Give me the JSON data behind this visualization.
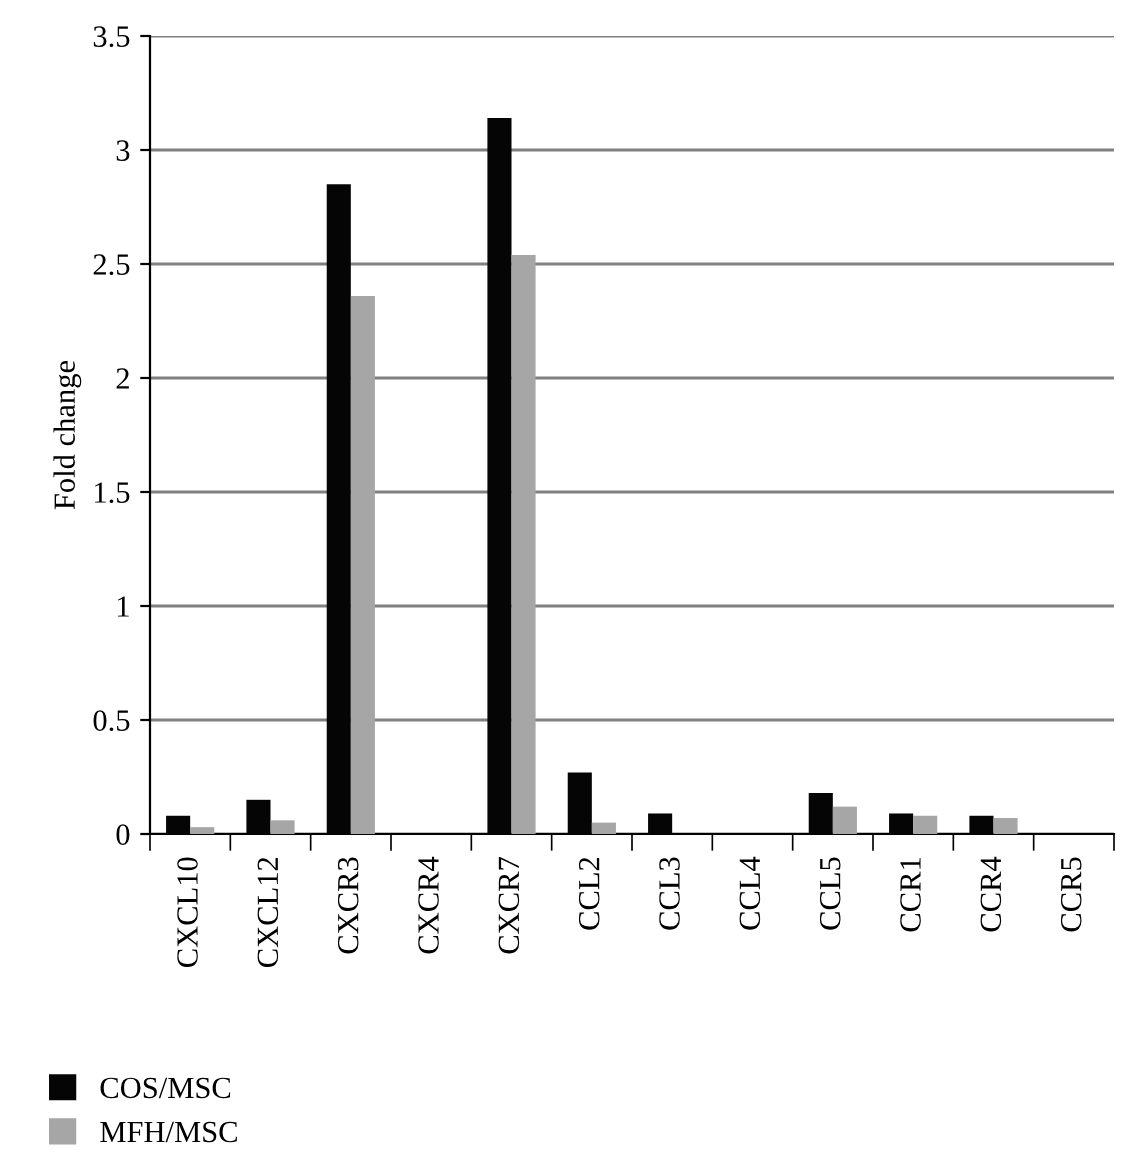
{
  "chart_data": {
    "type": "bar",
    "ylabel": "Fold change",
    "categories": [
      "CXCL10",
      "CXCL12",
      "CXCR3",
      "CXCR4",
      "CXCR7",
      "CCL2",
      "CCL3",
      "CCL4",
      "CCL5",
      "CCR1",
      "CCR4",
      "CCR5"
    ],
    "series": [
      {
        "name": "COS/MSC",
        "color": "#050505",
        "values": [
          0.08,
          0.15,
          2.85,
          0,
          3.14,
          0.27,
          0.09,
          0,
          0.18,
          0.09,
          0.08,
          0
        ]
      },
      {
        "name": "MFH/MSC",
        "color": "#a6a6a6",
        "values": [
          0.03,
          0.06,
          2.36,
          0,
          2.54,
          0.05,
          0,
          0,
          0.12,
          0.08,
          0.07,
          0
        ]
      }
    ],
    "ylim": [
      0,
      3.5
    ],
    "yticks": [
      0,
      0.5,
      1,
      1.5,
      2,
      2.5,
      3,
      3.5
    ],
    "grid": "y",
    "legend": "bottom left"
  }
}
